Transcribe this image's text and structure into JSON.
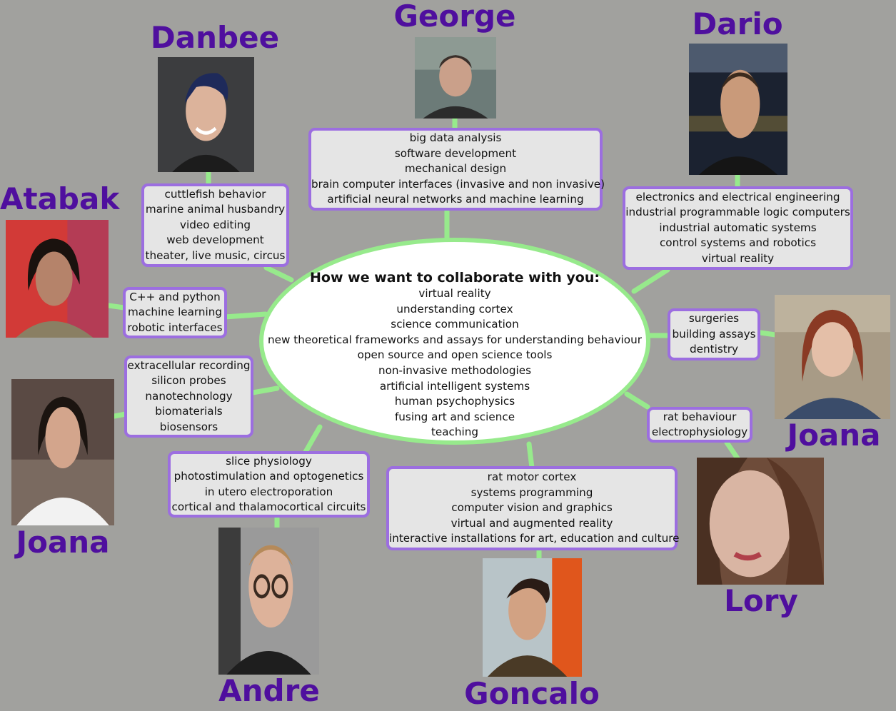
{
  "center": {
    "title": "How we want to collaborate with you:",
    "items": [
      "virtual reality",
      "understanding cortex",
      "science communication",
      "new theoretical frameworks and assays for understanding behaviour",
      "open source and open science tools",
      "non-invasive methodologies",
      "artificial intelligent systems",
      "human psychophysics",
      "fusing art and science",
      "teaching"
    ]
  },
  "people": {
    "george": {
      "name": "George",
      "skills": [
        "big data analysis",
        "software development",
        "mechanical design",
        "brain computer interfaces (invasive and non invasive)",
        "artificial neural networks and machine learning"
      ]
    },
    "dario": {
      "name": "Dario",
      "skills": [
        "electronics and electrical engineering",
        "industrial programmable logic computers",
        "industrial automatic systems",
        "control systems and robotics",
        "virtual reality"
      ]
    },
    "danbee": {
      "name": "Danbee",
      "skills": [
        "cuttlefish behavior",
        "marine animal husbandry",
        "video editing",
        "web development",
        "theater, live music, circus"
      ]
    },
    "atabak": {
      "name": "Atabak",
      "skills": [
        "C++ and python",
        "machine learning",
        "robotic interfaces"
      ]
    },
    "joana_left": {
      "name": "Joana",
      "skills": [
        "extracellular recording",
        "silicon probes",
        "nanotechnology",
        "biomaterials",
        "biosensors"
      ]
    },
    "joana_right": {
      "name": "Joana",
      "skills": [
        "surgeries",
        "building assays",
        "dentistry"
      ]
    },
    "lory": {
      "name": "Lory",
      "skills": [
        "rat behaviour",
        "electrophysiology"
      ]
    },
    "andre": {
      "name": "Andre",
      "skills": [
        "slice physiology",
        "photostimulation and optogenetics",
        "in utero electroporation",
        "cortical and thalamocortical circuits"
      ]
    },
    "goncalo": {
      "name": "Goncalo",
      "skills": [
        "rat motor cortex",
        "systems programming",
        "computer vision and graphics",
        "virtual and augmented reality",
        "interactive installations for art, education and culture"
      ]
    }
  },
  "colors": {
    "background": "#a1a19e",
    "connector": "#97ea8c",
    "box_border": "#9c6ee0",
    "box_fill": "#e5e5e5",
    "name": "#4f0f9e"
  }
}
